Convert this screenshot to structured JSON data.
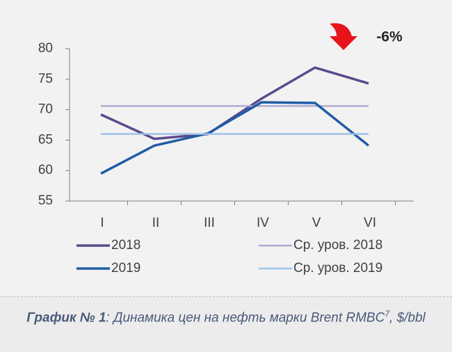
{
  "chart_data": {
    "type": "line",
    "categories": [
      "I",
      "II",
      "III",
      "IV",
      "V",
      "VI"
    ],
    "series": [
      {
        "name": "2018",
        "color": "#5b4a8a",
        "values": [
          69.2,
          65.2,
          66.0,
          71.8,
          76.9,
          74.3
        ]
      },
      {
        "name": "Ср. уров. 2018",
        "color": "#b3a9d3",
        "values": [
          70.6,
          70.6,
          70.6,
          70.6,
          70.6,
          70.6
        ]
      },
      {
        "name": "2019",
        "color": "#1f5ca6",
        "values": [
          59.5,
          64.1,
          66.1,
          71.2,
          71.1,
          64.1
        ]
      },
      {
        "name": "Ср. уров. 2019",
        "color": "#9cc3e8",
        "values": [
          66.0,
          66.0,
          66.0,
          66.0,
          66.0,
          66.0
        ]
      }
    ],
    "ylim": [
      55,
      80
    ],
    "yticks": [
      55,
      60,
      65,
      70,
      75,
      80
    ],
    "annotation": "-6%",
    "annotation_color": "#e8141b"
  },
  "caption": {
    "label": "График № 1",
    "text": ": Динамика цен на нефть марки  Brent RMBC",
    "sup": "7",
    "tail": ", $/bbl"
  }
}
